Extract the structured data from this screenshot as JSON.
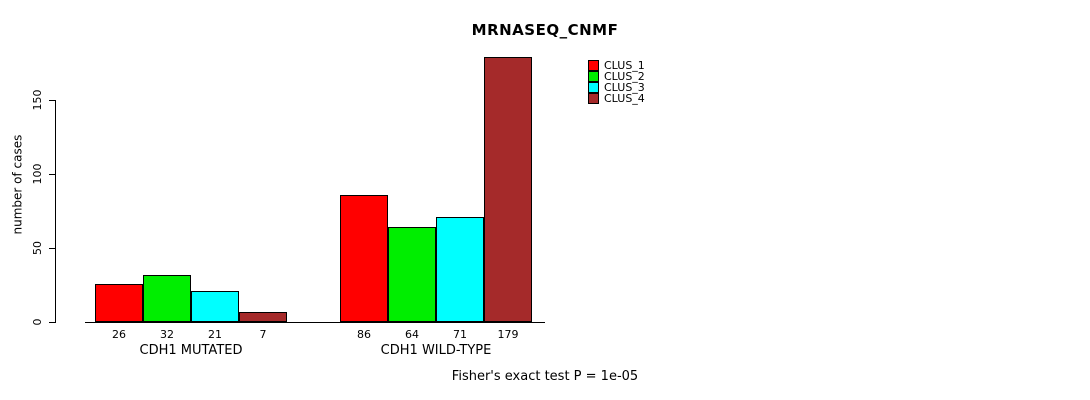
{
  "title": "MRNASEQ_CNMF",
  "ylabel": "number of cases",
  "footer": "Fisher's exact test P = 1e-05",
  "chart_data": {
    "type": "bar",
    "title": "MRNASEQ_CNMF",
    "xlabel": "",
    "ylabel": "number of cases",
    "categories": [
      "CDH1 MUTATED",
      "CDH1 WILD-TYPE"
    ],
    "series": [
      {
        "name": "CLUS_1",
        "color": "#FF0000",
        "values": [
          26,
          86
        ]
      },
      {
        "name": "CLUS_2",
        "color": "#00EE00",
        "values": [
          32,
          64
        ]
      },
      {
        "name": "CLUS_3",
        "color": "#00FFFF",
        "values": [
          21,
          71
        ]
      },
      {
        "name": "CLUS_4",
        "color": "#A52A2A",
        "values": [
          7,
          179
        ]
      }
    ],
    "yticks": [
      0,
      50,
      100,
      150
    ],
    "ylim": [
      0,
      185
    ],
    "grid": false,
    "legend_position": "top-right-inside",
    "annotation": "Fisher's exact test P = 1e-05"
  }
}
